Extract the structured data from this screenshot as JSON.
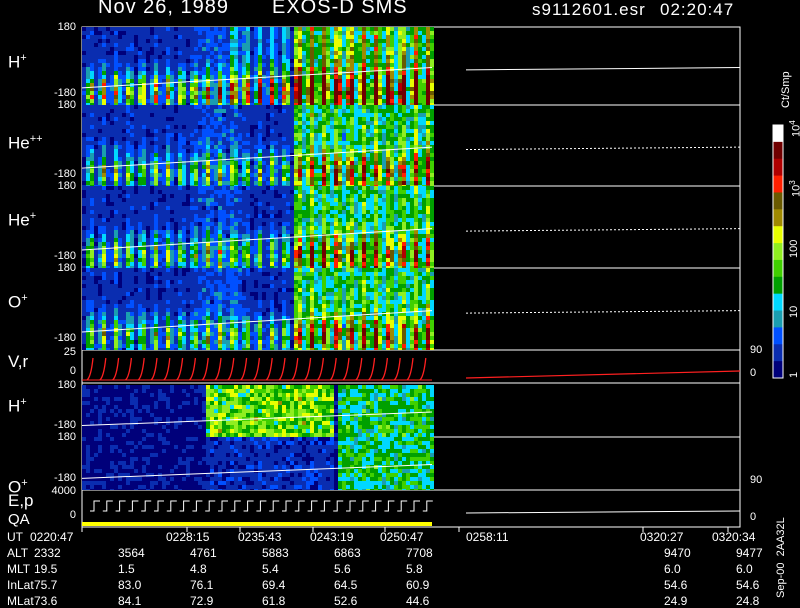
{
  "header": {
    "date": "Nov 26, 1989",
    "mission": "EXOS-D SMS",
    "file": "s9112601.esr",
    "time": "02:20:47"
  },
  "colors": {
    "background": "#000000",
    "trace": "#ffffff",
    "velocity": "#ff2020",
    "qa": "#ffff00",
    "colorbar": [
      "#00007a",
      "#0a2db0",
      "#0050ff",
      "#1a9eb0",
      "#00d8ff",
      "#00a000",
      "#40d000",
      "#90ee20",
      "#e8ff00",
      "#a08a00",
      "#6a5a00",
      "#ff2000",
      "#b00000",
      "#700000",
      "#ffffff"
    ]
  },
  "colorbar": {
    "unit": "Ct/Smp",
    "ticks": [
      {
        "label": "1",
        "value": 1
      },
      {
        "label": "10",
        "value": 10
      },
      {
        "label": "100",
        "value": 100
      },
      {
        "label": "10",
        "sup": "3",
        "value": 1000
      },
      {
        "label": "10",
        "sup": "4",
        "value": 10000
      }
    ]
  },
  "footer": {
    "version": "Sep-00",
    "id": "2AA32L"
  },
  "chart_data": {
    "type": "heatmap",
    "x_axis": {
      "unit": "UT",
      "ticks": [
        "0220:47",
        "0228:15",
        "0235:43",
        "0243:19",
        "0250:47",
        "0258:11",
        "0320:27",
        "0320:34"
      ]
    },
    "panels": [
      {
        "label": "H",
        "sup": "+",
        "ymax": "180",
        "ymin": "-180",
        "kind": "pitch"
      },
      {
        "label": "He",
        "sup": "++",
        "ymax": "180",
        "ymin": "-180",
        "kind": "pitch"
      },
      {
        "label": "He",
        "sup": "+",
        "ymax": "180",
        "ymin": "-180",
        "kind": "pitch"
      },
      {
        "label": "O",
        "sup": "+",
        "ymax": "180",
        "ymin": "-180",
        "kind": "pitch"
      },
      {
        "label": "V,r",
        "sup": "",
        "ymax": "25",
        "ymin": "0",
        "right_max": "90",
        "right_min": "0",
        "kind": "line"
      },
      {
        "label": "H",
        "sup": "+",
        "ymax": "180",
        "ymin": "-180",
        "kind": "pitch2"
      },
      {
        "label": "O",
        "sup": "+",
        "ymax": "180",
        "ymin": "-180",
        "right_min": "90",
        "kind": "pitch2"
      },
      {
        "label": "E,p",
        "sub": "QA",
        "ymax": "4000",
        "ymin": "0",
        "right_min": "0",
        "kind": "energy"
      }
    ],
    "ephemeris": [
      {
        "label": "UT",
        "values": [
          "0220:47",
          "0228:15",
          "0235:43",
          "0243:19",
          "0250:47",
          "0258:11",
          "0320:27",
          "0320:34"
        ]
      },
      {
        "label": "ALT",
        "values": [
          "2332",
          "3564",
          "4761",
          "5883",
          "6863",
          "7708",
          "9470",
          "9477"
        ]
      },
      {
        "label": "MLT",
        "values": [
          "19.5",
          "1.5",
          "4.8",
          "5.4",
          "5.6",
          "5.8",
          "6.0",
          "6.0"
        ]
      },
      {
        "label": "InLat",
        "values": [
          "75.7",
          "83.0",
          "76.1",
          "69.4",
          "64.5",
          "60.9",
          "54.6",
          "54.6"
        ]
      },
      {
        "label": "MLat",
        "values": [
          "73.6",
          "84.1",
          "72.9",
          "61.8",
          "52.6",
          "44.6",
          "24.9",
          "24.8"
        ]
      }
    ]
  }
}
